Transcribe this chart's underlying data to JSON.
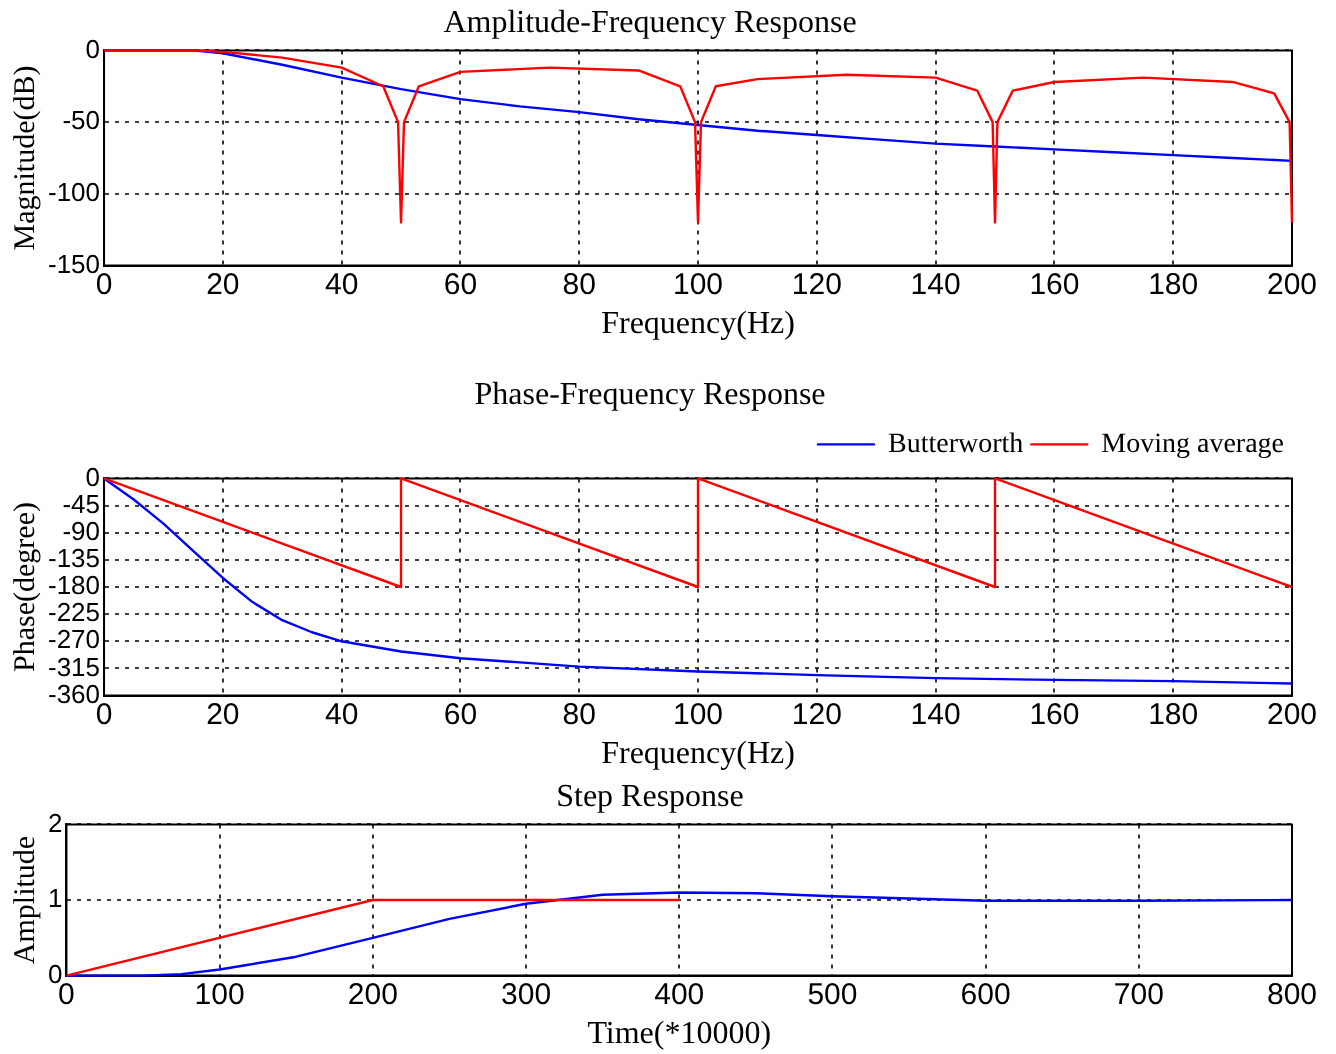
{
  "chart_data": [
    {
      "type": "line",
      "title": "Amplitude-Frequency Response",
      "xlabel": "Frequency(Hz)",
      "ylabel": "Magnitude(dB)",
      "xlim": [
        0,
        200
      ],
      "xticks": [
        0,
        20,
        40,
        60,
        80,
        100,
        120,
        140,
        160,
        180,
        200
      ],
      "ylim": [
        -150,
        0
      ],
      "yticks": [
        -150,
        -100,
        -50,
        0
      ],
      "grid": true,
      "legend": false,
      "series": [
        {
          "color": "#0000ff",
          "x": [
            0,
            15,
            20,
            30,
            40,
            50,
            60,
            70,
            80,
            90,
            100,
            110,
            120,
            130,
            140,
            150,
            160,
            170,
            180,
            190,
            200
          ],
          "values": [
            0,
            0,
            -2,
            -10,
            -19,
            -27,
            -34,
            -39,
            -43,
            -48,
            -52,
            -56,
            -59,
            -62,
            -65,
            -67,
            -69,
            -71,
            -73,
            -75,
            -77
          ]
        },
        {
          "color": "#ff0000",
          "x": [
            0,
            15,
            20,
            30,
            40,
            47,
            49.5,
            50,
            50.5,
            53,
            60,
            75,
            90,
            97,
            99.5,
            100,
            100.5,
            103,
            110,
            125,
            140,
            147,
            149.6,
            150,
            150.4,
            153,
            160,
            175,
            190,
            197,
            199.6,
            200
          ],
          "values": [
            0,
            0,
            -1,
            -5,
            -12,
            -25,
            -50,
            -120,
            -50,
            -25,
            -15,
            -12,
            -14,
            -25,
            -50,
            -120,
            -50,
            -25,
            -20,
            -17,
            -19,
            -28,
            -50,
            -120,
            -50,
            -28,
            -22,
            -19,
            -22,
            -30,
            -50,
            -120
          ]
        }
      ]
    },
    {
      "type": "line",
      "title": "Phase-Frequency Response",
      "xlabel": "Frequency(Hz)",
      "ylabel": "Phase(degree)",
      "xlim": [
        0,
        200
      ],
      "xticks": [
        0,
        20,
        40,
        60,
        80,
        100,
        120,
        140,
        160,
        180,
        200
      ],
      "ylim": [
        -360,
        0
      ],
      "yticks": [
        -360,
        -315,
        -270,
        -225,
        -180,
        -135,
        -90,
        -45,
        0
      ],
      "grid": true,
      "legend": "top right",
      "series": [
        {
          "name": "Butterworth",
          "color": "#0000ff",
          "x": [
            0,
            5,
            10,
            15,
            20,
            25,
            30,
            35,
            40,
            50,
            60,
            70,
            80,
            100,
            120,
            140,
            160,
            180,
            200
          ],
          "values": [
            0,
            -35,
            -75,
            -120,
            -165,
            -205,
            -235,
            -255,
            -270,
            -287,
            -298,
            -305,
            -312,
            -320,
            -326,
            -331,
            -334,
            -336,
            -340
          ]
        },
        {
          "name": "Moving average",
          "color": "#ff0000",
          "x": [
            0,
            50,
            50,
            100,
            100,
            150,
            150,
            200
          ],
          "values": [
            0,
            -180,
            0,
            -180,
            0,
            -180,
            0,
            -180
          ]
        }
      ]
    },
    {
      "type": "line",
      "title": "Step Response",
      "xlabel": "Time(*10000)",
      "ylabel": "Amplitude",
      "xlim": [
        0,
        800
      ],
      "xticks": [
        0,
        100,
        200,
        300,
        400,
        500,
        600,
        700,
        800
      ],
      "ylim": [
        0,
        2
      ],
      "yticks": [
        0,
        1,
        2
      ],
      "grid": true,
      "legend": false,
      "series": [
        {
          "color": "#0000ff",
          "x": [
            0,
            50,
            75,
            100,
            150,
            200,
            250,
            300,
            350,
            400,
            450,
            500,
            550,
            600,
            700,
            800
          ],
          "values": [
            0,
            0,
            0.02,
            0.08,
            0.25,
            0.5,
            0.75,
            0.95,
            1.07,
            1.1,
            1.09,
            1.05,
            1.02,
            0.99,
            0.99,
            1
          ]
        },
        {
          "color": "#ff0000",
          "x": [
            0,
            200,
            400
          ],
          "values": [
            0,
            1,
            1
          ]
        }
      ]
    }
  ]
}
